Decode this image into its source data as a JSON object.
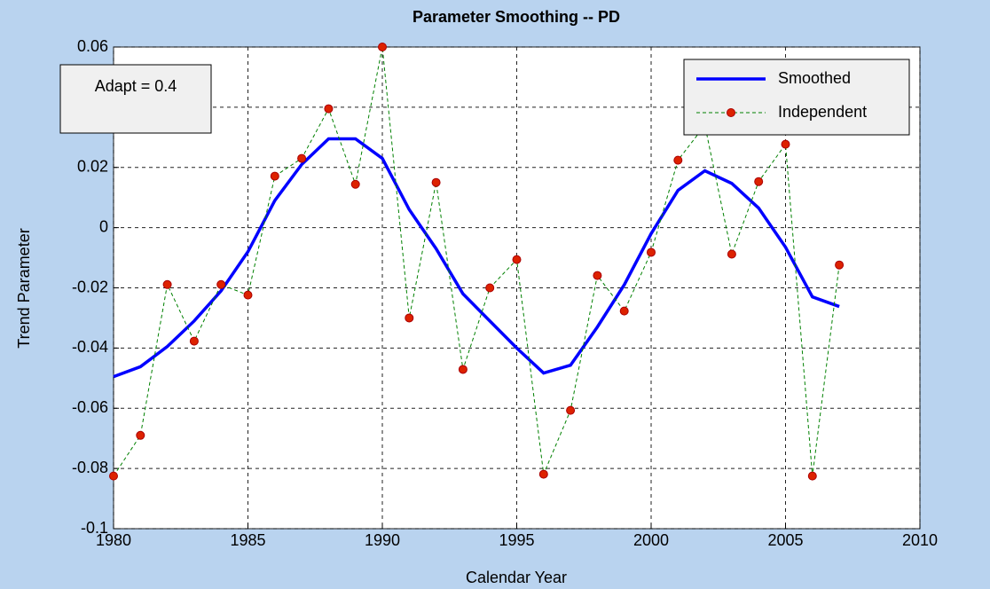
{
  "chart_data": {
    "type": "line",
    "title": "Parameter Smoothing -- PD",
    "x_label": "Calendar Year",
    "y_label": "Trend Parameter",
    "annotation": "Adapt = 0.4",
    "x": [
      1980,
      1981,
      1982,
      1983,
      1984,
      1985,
      1986,
      1987,
      1988,
      1989,
      1990,
      1991,
      1992,
      1993,
      1994,
      1995,
      1996,
      1997,
      1998,
      1999,
      2000,
      2001,
      2002,
      2003,
      2004,
      2005,
      2006,
      2007
    ],
    "series": [
      {
        "name": "Smoothed",
        "color": "#0000ff",
        "style": "solid",
        "values": [
          -0.0495,
          -0.0462,
          -0.0395,
          -0.031,
          -0.021,
          -0.008,
          0.009,
          0.021,
          0.0295,
          0.0295,
          0.023,
          0.006,
          -0.007,
          -0.022,
          -0.031,
          -0.04,
          -0.0483,
          -0.0457,
          -0.033,
          -0.019,
          -0.002,
          0.0124,
          0.0189,
          0.0147,
          0.0065,
          -0.0065,
          -0.023,
          -0.0262
        ]
      },
      {
        "name": "Independent",
        "color": "#008000",
        "marker_color": "#dd2200",
        "style": "dashed",
        "values": [
          -0.0825,
          -0.069,
          -0.0189,
          -0.0377,
          -0.0189,
          -0.0224,
          0.0171,
          0.023,
          0.0395,
          0.0144,
          0.06,
          -0.03,
          0.015,
          -0.0471,
          -0.02,
          -0.0106,
          -0.0819,
          -0.0607,
          -0.0159,
          -0.0277,
          -0.0082,
          0.0224,
          0.034,
          -0.0088,
          0.0153,
          0.0277,
          -0.0825,
          -0.0124
        ]
      }
    ],
    "xlim": [
      1980,
      2010
    ],
    "xticks": [
      1980,
      1985,
      1990,
      1995,
      2000,
      2005,
      2010
    ],
    "ylim": [
      -0.1,
      0.06
    ],
    "yticks": [
      -0.1,
      -0.08,
      -0.06,
      -0.04,
      -0.02,
      0,
      0.02,
      0.04,
      0.06
    ],
    "grid": true,
    "legend": "upper right"
  }
}
